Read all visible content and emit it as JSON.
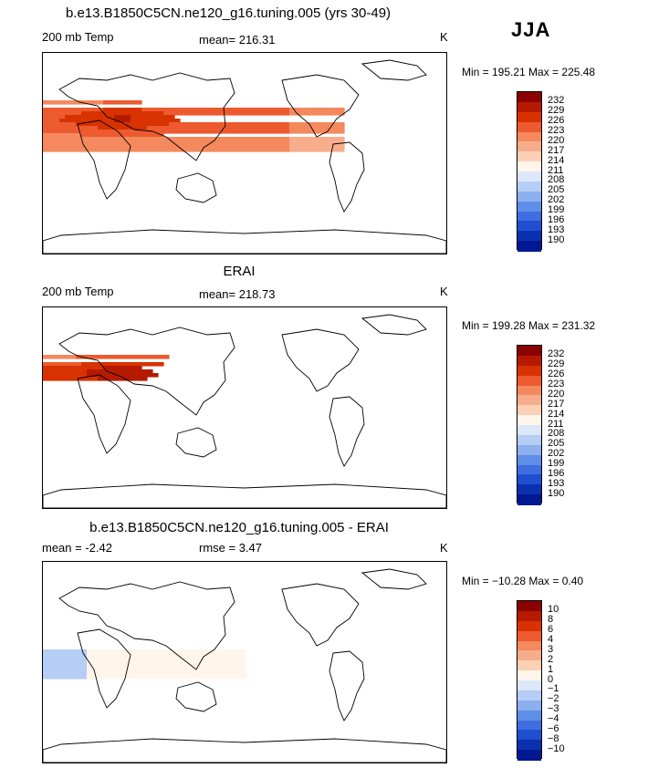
{
  "season": "JJA",
  "panels": [
    {
      "title": "b.e13.B1850C5CN.ne120_g16.tuning.005 (yrs 30-49)",
      "left_label": "200 mb Temp",
      "center_label": "mean= 216.31",
      "units": "K",
      "stats": "Min = 195.21 Max = 225.48",
      "colorbar_labels": [
        "232",
        "229",
        "226",
        "223",
        "220",
        "217",
        "214",
        "211",
        "208",
        "205",
        "202",
        "199",
        "196",
        "193",
        "190"
      ],
      "field": {
        "kind": "model"
      }
    },
    {
      "title": "ERAI",
      "left_label": "200 mb Temp",
      "center_label": "mean= 218.73",
      "units": "K",
      "stats": "Min = 199.28 Max = 231.32",
      "colorbar_labels": [
        "232",
        "229",
        "226",
        "223",
        "220",
        "217",
        "214",
        "211",
        "208",
        "205",
        "202",
        "199",
        "196",
        "193",
        "190"
      ],
      "field": {
        "kind": "obs"
      }
    },
    {
      "title": "b.e13.B1850C5CN.ne120_g16.tuning.005 - ERAI",
      "left_label": "mean =   -2.42",
      "center_label": "rmse =    3.47",
      "units": "K",
      "stats": "Min = −10.28 Max =    0.40",
      "colorbar_labels": [
        "10",
        "8",
        "6",
        "4",
        "3",
        "2",
        "1",
        "0",
        "−1",
        "−2",
        "−3",
        "−4",
        "−6",
        "−8",
        "−10"
      ],
      "field": {
        "kind": "diff"
      }
    }
  ],
  "palette": [
    "#8b0000",
    "#b51a00",
    "#d83200",
    "#ee5a2f",
    "#f4895d",
    "#f7ad8b",
    "#fbd0b4",
    "#fff5ea",
    "#dce8fa",
    "#b6cdf5",
    "#8cb0ee",
    "#5e8ee8",
    "#3e6ee0",
    "#1f4fd0",
    "#0a30b0",
    "#001890"
  ],
  "legend_ticks_labelled": true
}
